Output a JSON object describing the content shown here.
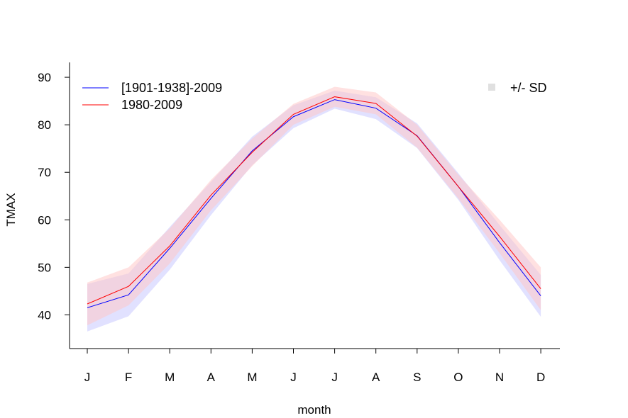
{
  "chart_data": {
    "type": "line",
    "title": "",
    "xlabel": "month",
    "ylabel": "TMAX",
    "categories": [
      "J",
      "F",
      "M",
      "A",
      "M",
      "J",
      "J",
      "A",
      "S",
      "O",
      "N",
      "D"
    ],
    "ylim": [
      33.5,
      93.5
    ],
    "yticks": [
      40,
      50,
      60,
      70,
      80,
      90
    ],
    "grid": false,
    "series": [
      {
        "name": "[1901-1938]-2009",
        "color": "#0000ff",
        "band_color": "#c8c8ff",
        "values": [
          41.5,
          44.2,
          54.0,
          64.5,
          74.5,
          81.7,
          85.3,
          83.5,
          77.7,
          67.0,
          55.2,
          44.0
        ],
        "sd_lower": [
          36.5,
          39.7,
          49.5,
          61.0,
          71.5,
          79.3,
          83.4,
          81.2,
          75.1,
          64.2,
          51.5,
          39.6
        ],
        "sd_upper": [
          46.5,
          48.7,
          58.5,
          68.0,
          77.5,
          84.1,
          87.2,
          85.8,
          80.3,
          69.8,
          58.9,
          48.4
        ]
      },
      {
        "name": "1980-2009",
        "color": "#ff0000",
        "band_color": "#ffc8c8",
        "values": [
          42.3,
          46.0,
          54.5,
          65.2,
          74.2,
          82.2,
          85.9,
          84.5,
          77.6,
          67.0,
          56.5,
          45.5
        ],
        "sd_lower": [
          37.8,
          42.0,
          50.8,
          62.0,
          71.3,
          80.0,
          83.8,
          82.2,
          75.2,
          64.5,
          53.0,
          41.0
        ],
        "sd_upper": [
          46.8,
          50.0,
          58.2,
          68.4,
          77.1,
          84.4,
          88.0,
          86.8,
          80.0,
          69.5,
          60.0,
          50.0
        ]
      }
    ],
    "legend": {
      "placement": "top-left",
      "band_label": "+/- SD",
      "band_placement": "top-right",
      "band_swatch_color": "#e0e0e0"
    }
  }
}
